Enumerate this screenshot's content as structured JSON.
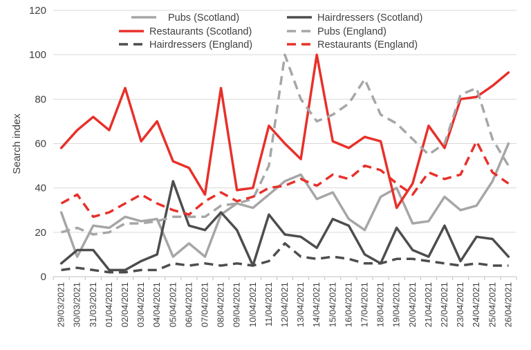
{
  "chart_data": {
    "type": "line",
    "title": "",
    "xlabel": "",
    "ylabel": "Search index",
    "ylim": [
      0,
      120
    ],
    "yticks": [
      0,
      20,
      40,
      60,
      80,
      100,
      120
    ],
    "grid": "horizontal",
    "legend_position": "top",
    "categories": [
      "29/03/2021",
      "30/03/2021",
      "31/03/2021",
      "01/04/2021",
      "02/04/2021",
      "03/04/2021",
      "04/04/2021",
      "05/04/2021",
      "06/04/2021",
      "07/04/2021",
      "08/04/2021",
      "09/04/2021",
      "10/04/2021",
      "11/04/2021",
      "12/04/2021",
      "13/04/2021",
      "14/04/2021",
      "15/04/2021",
      "16/04/2021",
      "17/04/2021",
      "18/04/2021",
      "19/04/2021",
      "20/04/2021",
      "21/04/2021",
      "22/04/2021",
      "23/04/2021",
      "24/04/2021",
      "25/04/2021",
      "26/04/2021"
    ],
    "series": [
      {
        "name": "Pubs (Scotland)",
        "color": "#a6a6a6",
        "dash": "solid",
        "values": [
          29,
          9,
          23,
          22,
          27,
          25,
          26,
          9,
          15,
          9,
          28,
          33,
          31,
          37,
          43,
          46,
          35,
          38,
          26,
          21,
          36,
          40,
          24,
          25,
          36,
          30,
          32,
          43,
          60
        ]
      },
      {
        "name": "Hairdressers (Scotland)",
        "color": "#4d4d4d",
        "dash": "solid",
        "values": [
          6,
          12,
          12,
          3,
          3,
          7,
          10,
          43,
          23,
          21,
          29,
          21,
          5,
          28,
          19,
          18,
          13,
          26,
          23,
          10,
          6,
          22,
          12,
          9,
          23,
          7,
          18,
          17,
          9
        ]
      },
      {
        "name": "Restaurants (Scotland)",
        "color": "#e8302a",
        "dash": "solid",
        "values": [
          58,
          66,
          72,
          66,
          85,
          61,
          70,
          52,
          49,
          37,
          85,
          39,
          40,
          68,
          60,
          53,
          100,
          61,
          58,
          63,
          61,
          31,
          42,
          68,
          58,
          80,
          81,
          86,
          92
        ]
      },
      {
        "name": "Pubs (England)",
        "color": "#a6a6a6",
        "dash": "dashed",
        "values": [
          20,
          22,
          19,
          20,
          24,
          24,
          25,
          27,
          27,
          27,
          32,
          33,
          35,
          50,
          100,
          80,
          70,
          73,
          78,
          89,
          73,
          69,
          62,
          55,
          60,
          82,
          85,
          62,
          50
        ]
      },
      {
        "name": "Hairdressers (England)",
        "color": "#4d4d4d",
        "dash": "dashed",
        "values": [
          3,
          4,
          3,
          2,
          2,
          3,
          3,
          6,
          5,
          6,
          5,
          6,
          5,
          7,
          15,
          9,
          8,
          9,
          8,
          6,
          6,
          8,
          8,
          7,
          6,
          5,
          6,
          5,
          5
        ]
      },
      {
        "name": "Restaurants (England)",
        "color": "#e8302a",
        "dash": "dashed",
        "values": [
          33,
          37,
          27,
          29,
          33,
          37,
          33,
          30,
          28,
          34,
          38,
          34,
          36,
          40,
          41,
          44,
          41,
          46,
          44,
          50,
          48,
          42,
          37,
          47,
          44,
          46,
          61,
          47,
          42
        ]
      }
    ]
  }
}
